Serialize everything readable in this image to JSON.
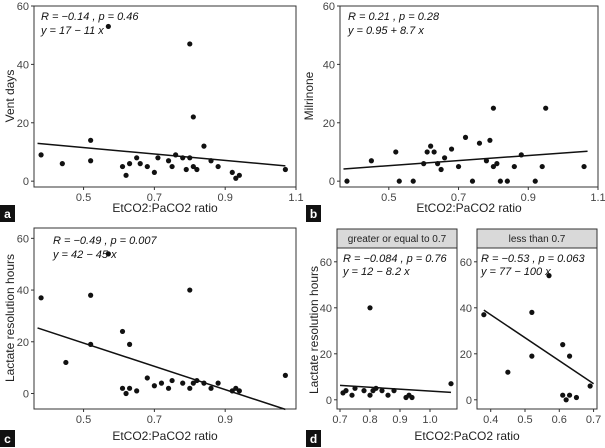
{
  "chart_data": [
    {
      "id": "a",
      "type": "scatter",
      "panel_label": "a",
      "xlabel": "EtCO2:PaCO2 ratio",
      "ylabel": "Vent days",
      "xlim": [
        0.36,
        1.1
      ],
      "ylim": [
        -2,
        60
      ],
      "xticks": [
        0.5,
        0.7,
        0.9,
        1.1
      ],
      "xtick_labels": [
        "0.5",
        "0.7",
        "0.9",
        "1.1"
      ],
      "yticks": [
        0,
        20,
        40,
        60
      ],
      "ytick_labels": [
        "0",
        "20",
        "40",
        "60"
      ],
      "stat_lines": [
        "R = −0.14 , p = 0.46",
        "y = 17 − 11 x"
      ],
      "fit": {
        "intercept": 17,
        "slope": -11,
        "x_range": [
          0.37,
          1.07
        ]
      },
      "points": {
        "x": [
          0.38,
          0.44,
          0.52,
          0.52,
          0.57,
          0.61,
          0.62,
          0.63,
          0.65,
          0.66,
          0.68,
          0.7,
          0.71,
          0.74,
          0.75,
          0.76,
          0.78,
          0.79,
          0.8,
          0.8,
          0.81,
          0.81,
          0.82,
          0.84,
          0.86,
          0.88,
          0.92,
          0.93,
          0.94,
          1.07
        ],
        "y": [
          9,
          6,
          14,
          7,
          53,
          5,
          2,
          6,
          8,
          6,
          5,
          3,
          8,
          7,
          5,
          9,
          8,
          4,
          8,
          47,
          5,
          22,
          4,
          12,
          7,
          5,
          3,
          1,
          2,
          4
        ]
      }
    },
    {
      "id": "b",
      "type": "scatter",
      "panel_label": "b",
      "xlabel": "EtCO2:PaCO2 ratio",
      "ylabel": "Milrinone",
      "xlim": [
        0.36,
        1.1
      ],
      "ylim": [
        -2,
        60
      ],
      "xticks": [
        0.5,
        0.7,
        0.9,
        1.1
      ],
      "xtick_labels": [
        "0.5",
        "0.7",
        "0.9",
        "1.1"
      ],
      "yticks": [
        0,
        20,
        40,
        60
      ],
      "ytick_labels": [
        "0",
        "20",
        "40",
        "60"
      ],
      "stat_lines": [
        "R = 0.21 , p = 0.28",
        "y = 0.95 + 8.7 x"
      ],
      "fit": {
        "intercept": 0.95,
        "slope": 8.7,
        "x_range": [
          0.37,
          1.07
        ]
      },
      "points": {
        "x": [
          0.38,
          0.45,
          0.52,
          0.53,
          0.57,
          0.6,
          0.61,
          0.62,
          0.63,
          0.64,
          0.65,
          0.66,
          0.68,
          0.7,
          0.72,
          0.74,
          0.76,
          0.78,
          0.79,
          0.8,
          0.8,
          0.81,
          0.82,
          0.84,
          0.86,
          0.88,
          0.92,
          0.94,
          0.95,
          1.06
        ],
        "y": [
          0,
          7,
          10,
          0,
          0,
          6,
          10,
          12,
          10,
          6,
          4,
          8,
          11,
          5,
          15,
          0,
          13,
          7,
          14,
          25,
          5,
          6,
          0,
          0,
          5,
          9,
          0,
          5,
          25,
          5
        ]
      }
    },
    {
      "id": "c",
      "type": "scatter",
      "panel_label": "c",
      "xlabel": "EtCO2:PaCO2 ratio",
      "ylabel": "Lactate resolution hours",
      "xlim": [
        0.36,
        1.1
      ],
      "ylim": [
        -6,
        64
      ],
      "xticks": [
        0.5,
        0.7,
        0.9
      ],
      "xtick_labels": [
        "0.5",
        "0.7",
        "0.9"
      ],
      "yticks": [
        0,
        20,
        40,
        60
      ],
      "ytick_labels": [
        "0",
        "20",
        "40",
        "60"
      ],
      "stat_lines": [
        "R = −0.49 , p = 0.007",
        "y = 42 − 45 x"
      ],
      "fit": {
        "intercept": 42,
        "slope": -45,
        "x_range": [
          0.37,
          1.07
        ]
      },
      "points": {
        "x": [
          0.38,
          0.45,
          0.52,
          0.52,
          0.57,
          0.61,
          0.61,
          0.62,
          0.63,
          0.63,
          0.65,
          0.68,
          0.7,
          0.72,
          0.74,
          0.75,
          0.78,
          0.8,
          0.8,
          0.81,
          0.82,
          0.84,
          0.86,
          0.88,
          0.92,
          0.93,
          0.94,
          1.07
        ],
        "y": [
          37,
          12,
          38,
          19,
          54,
          24,
          2,
          0,
          19,
          2,
          1,
          6,
          3,
          4,
          2,
          5,
          4,
          40,
          2,
          4,
          5,
          4,
          2,
          4,
          1,
          2,
          1,
          7
        ]
      }
    },
    {
      "id": "d1",
      "type": "scatter",
      "panel_label": "d",
      "strip": "greater or equal to 0.7",
      "xlabel": "EtCO2:PaCO2 ratio",
      "ylabel": "Lactate resolution hours",
      "xlim": [
        0.69,
        1.09
      ],
      "ylim": [
        -4,
        66
      ],
      "xticks": [
        0.7,
        0.8,
        0.9,
        1.0
      ],
      "xtick_labels": [
        "0.7",
        "0.8",
        "0.9",
        "1.0"
      ],
      "yticks": [
        0,
        20,
        40,
        60
      ],
      "ytick_labels": [
        "0",
        "20",
        "40",
        "60"
      ],
      "stat_lines": [
        "R = −0.084 , p = 0.76",
        "y = 12 − 8.2 x"
      ],
      "fit": {
        "intercept": 12,
        "slope": -8.2,
        "x_range": [
          0.7,
          1.07
        ]
      },
      "points": {
        "x": [
          0.71,
          0.72,
          0.74,
          0.75,
          0.78,
          0.8,
          0.8,
          0.81,
          0.82,
          0.84,
          0.86,
          0.88,
          0.92,
          0.93,
          0.94,
          1.07
        ],
        "y": [
          3,
          4,
          2,
          5,
          4,
          40,
          2,
          4,
          5,
          4,
          2,
          4,
          1,
          2,
          1,
          7
        ]
      }
    },
    {
      "id": "d2",
      "type": "scatter",
      "strip": "less than 0.7",
      "xlabel": "",
      "ylabel": "",
      "xlim": [
        0.36,
        0.71
      ],
      "ylim": [
        -4,
        66
      ],
      "xticks": [
        0.4,
        0.5,
        0.6,
        0.7
      ],
      "xtick_labels": [
        "0.4",
        "0.5",
        "0.6",
        "0.7"
      ],
      "yticks": [
        0,
        20,
        40,
        60
      ],
      "ytick_labels": [
        "0",
        "20",
        "40",
        "60"
      ],
      "stat_lines": [
        "R = −0.53 , p = 0.063",
        "y = 77 − 100 x"
      ],
      "fit": {
        "intercept": 77,
        "slope": -100,
        "x_range": [
          0.38,
          0.7
        ]
      },
      "points": {
        "x": [
          0.38,
          0.45,
          0.52,
          0.52,
          0.57,
          0.61,
          0.61,
          0.62,
          0.63,
          0.63,
          0.65,
          0.69
        ],
        "y": [
          37,
          12,
          38,
          19,
          54,
          24,
          2,
          0,
          19,
          2,
          1,
          6
        ]
      }
    }
  ],
  "shared_xlabel_d": "EtCO2:PaCO2 ratio",
  "theme": {
    "point_color": "#111111",
    "line_color": "#111111",
    "frame_color": "#333333",
    "strip_fill": "#d9d9d9",
    "badge_fill": "#111111"
  }
}
